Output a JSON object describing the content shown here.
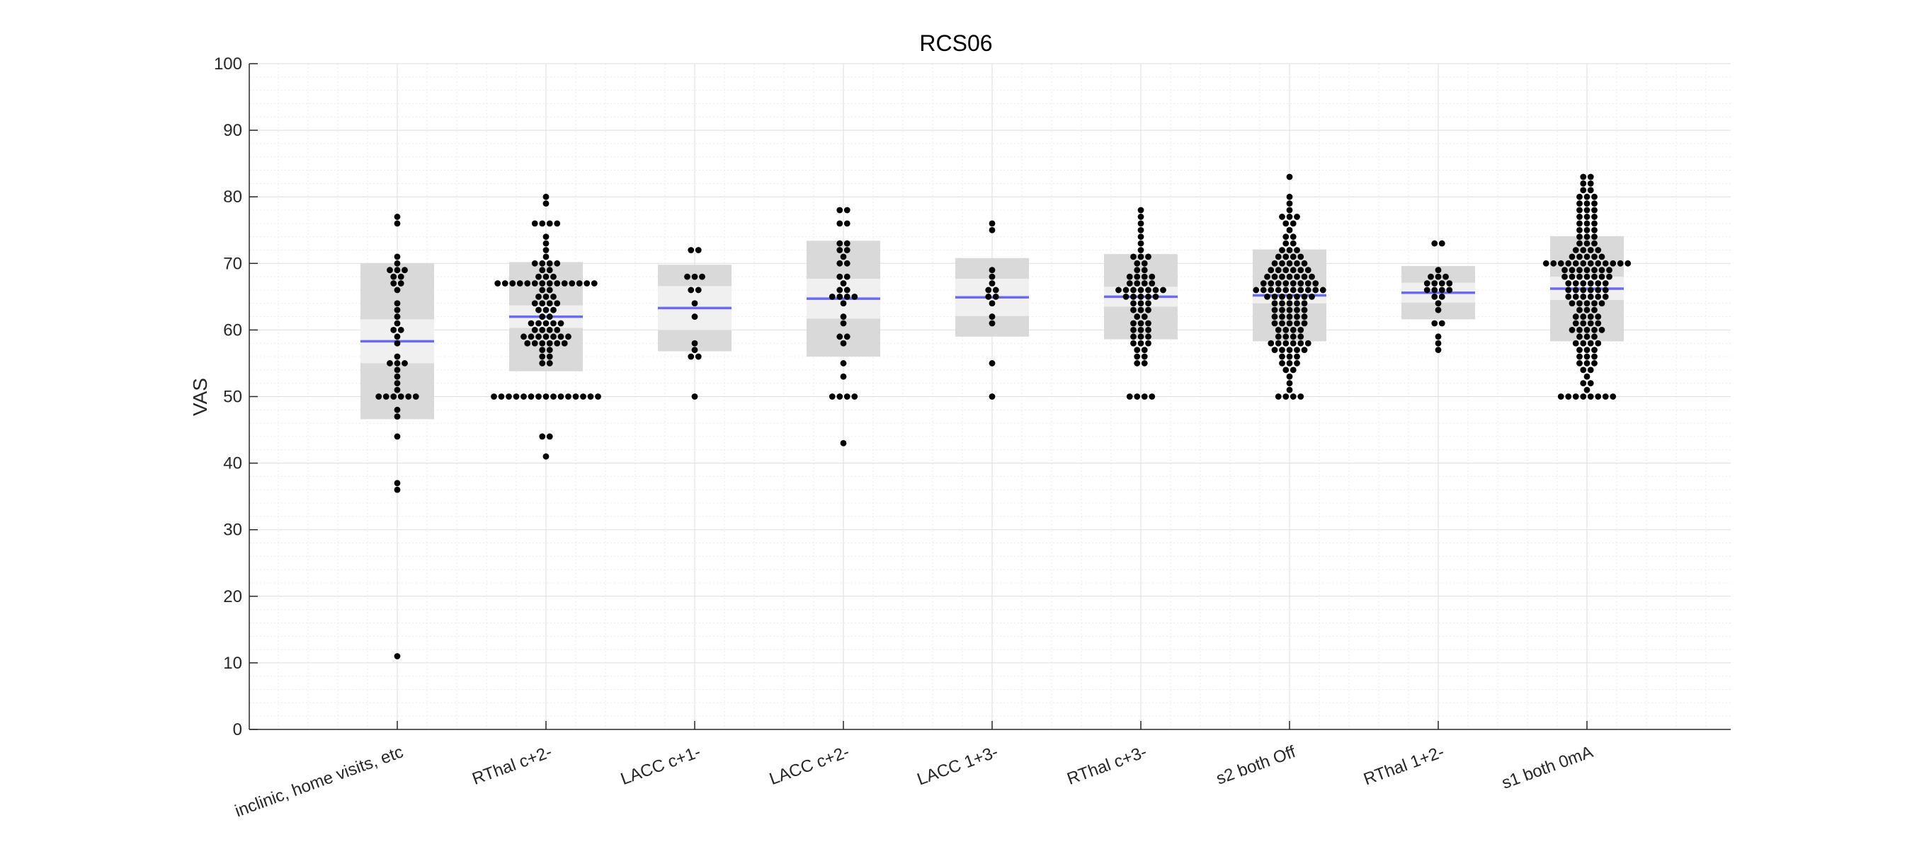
{
  "chart_data": {
    "type": "scatter",
    "title": "RCS06",
    "xlabel": "",
    "ylabel": "VAS",
    "ylim": [
      0,
      100
    ],
    "yticks": [
      0,
      10,
      20,
      30,
      40,
      50,
      60,
      70,
      80,
      90,
      100
    ],
    "grid": true,
    "minor_grid": true,
    "categories": [
      "inclinic, home visits, etc",
      "RThal c+2-",
      "LACC c+1-",
      "LACC c+2-",
      "LACC 1+3-",
      "RThal c+3-",
      "s2 both Off",
      "RThal 1+2-",
      "s1 both 0mA"
    ],
    "colors": {
      "mean_line": "#6b6bf0",
      "sd_box": "#d9d9d9",
      "sem_box": "#f0f0f0",
      "points": "#000000"
    },
    "groups": [
      {
        "category": "inclinic, home visits, etc",
        "mean": 58.3,
        "sem_low": 55.0,
        "sem_high": 61.6,
        "sd_low": 46.6,
        "sd_high": 70.0,
        "points": [
          77,
          76,
          71,
          70,
          69,
          69,
          69,
          68,
          68,
          67,
          67,
          66,
          64,
          63,
          62,
          61,
          60,
          60,
          59,
          58,
          56,
          55,
          55,
          55,
          54,
          53,
          52,
          51,
          50,
          50,
          50,
          50,
          50,
          50,
          48,
          47,
          44,
          37,
          36,
          11
        ]
      },
      {
        "category": "RThal c+2-",
        "mean": 62.0,
        "sem_low": 60.3,
        "sem_high": 63.7,
        "sd_low": 53.8,
        "sd_high": 70.2,
        "points": [
          80,
          79,
          76,
          76,
          76,
          76,
          74,
          73,
          72,
          71,
          70,
          70,
          70,
          70,
          69,
          69,
          68,
          68,
          68,
          67,
          67,
          67,
          67,
          67,
          67,
          67,
          67,
          67,
          67,
          67,
          67,
          67,
          67,
          66,
          66,
          65,
          65,
          65,
          64,
          64,
          64,
          64,
          63,
          63,
          63,
          62,
          62,
          61,
          61,
          61,
          61,
          61,
          60,
          60,
          60,
          60,
          59,
          59,
          59,
          59,
          59,
          59,
          59,
          58,
          58,
          58,
          58,
          58,
          58,
          57,
          57,
          56,
          56,
          55,
          55,
          50,
          50,
          50,
          50,
          50,
          50,
          50,
          50,
          50,
          50,
          50,
          50,
          50,
          50,
          50,
          44,
          44,
          41
        ]
      },
      {
        "category": "LACC c+1-",
        "mean": 63.3,
        "sem_low": 60.0,
        "sem_high": 66.6,
        "sd_low": 56.8,
        "sd_high": 69.8,
        "points": [
          72,
          72,
          68,
          68,
          68,
          66,
          66,
          64,
          62,
          58,
          57,
          56,
          56,
          50
        ]
      },
      {
        "category": "LACC c+2-",
        "mean": 64.7,
        "sem_low": 61.7,
        "sem_high": 67.7,
        "sd_low": 56.0,
        "sd_high": 73.4,
        "points": [
          78,
          78,
          76,
          76,
          73,
          73,
          72,
          72,
          71,
          70,
          70,
          68,
          68,
          67,
          66,
          66,
          65,
          65,
          65,
          65,
          64,
          62,
          61,
          59,
          59,
          58,
          55,
          53,
          50,
          50,
          50,
          50,
          43
        ]
      },
      {
        "category": "LACC 1+3-",
        "mean": 64.9,
        "sem_low": 62.1,
        "sem_high": 67.7,
        "sd_low": 59.0,
        "sd_high": 70.8,
        "points": [
          76,
          75,
          69,
          68,
          67,
          66,
          66,
          65,
          65,
          64,
          62,
          61,
          55,
          50
        ]
      },
      {
        "category": "RThal c+3-",
        "mean": 65.0,
        "sem_low": 63.5,
        "sem_high": 66.5,
        "sd_low": 58.6,
        "sd_high": 71.4,
        "points": [
          78,
          77,
          76,
          75,
          74,
          73,
          72,
          71,
          71,
          71,
          70,
          70,
          69,
          69,
          68,
          68,
          68,
          68,
          67,
          67,
          67,
          67,
          66,
          66,
          66,
          66,
          66,
          66,
          66,
          65,
          65,
          65,
          65,
          65,
          64,
          64,
          64,
          63,
          63,
          63,
          62,
          62,
          61,
          61,
          61,
          60,
          60,
          60,
          59,
          59,
          59,
          58,
          58,
          58,
          57,
          57,
          56,
          56,
          55,
          55,
          50,
          50,
          50,
          50
        ]
      },
      {
        "category": "s2 both Off",
        "mean": 65.2,
        "sem_low": 64.0,
        "sem_high": 66.4,
        "sd_low": 58.3,
        "sd_high": 72.1,
        "points": [
          83,
          80,
          79,
          78,
          77,
          77,
          77,
          76,
          76,
          75,
          74,
          74,
          73,
          73,
          72,
          72,
          72,
          71,
          71,
          71,
          71,
          70,
          70,
          70,
          70,
          70,
          69,
          69,
          69,
          69,
          69,
          69,
          68,
          68,
          68,
          68,
          68,
          68,
          68,
          67,
          67,
          67,
          67,
          67,
          67,
          67,
          67,
          66,
          66,
          66,
          66,
          66,
          66,
          66,
          66,
          66,
          66,
          65,
          65,
          65,
          65,
          65,
          65,
          65,
          64,
          64,
          64,
          64,
          64,
          63,
          63,
          63,
          63,
          63,
          62,
          62,
          62,
          62,
          62,
          61,
          61,
          61,
          61,
          61,
          60,
          60,
          60,
          60,
          59,
          59,
          59,
          59,
          58,
          58,
          58,
          58,
          58,
          58,
          57,
          57,
          57,
          57,
          57,
          56,
          56,
          56,
          55,
          55,
          55,
          54,
          54,
          53,
          52,
          51,
          50,
          50,
          50,
          50
        ]
      },
      {
        "category": "RThal 1+2-",
        "mean": 65.6,
        "sem_low": 64.1,
        "sem_high": 67.1,
        "sd_low": 61.6,
        "sd_high": 69.6,
        "points": [
          73,
          73,
          69,
          68,
          68,
          68,
          67,
          67,
          67,
          67,
          66,
          66,
          66,
          66,
          65,
          65,
          64,
          63,
          61,
          61,
          59,
          58,
          57
        ]
      },
      {
        "category": "s1 both 0mA",
        "mean": 66.2,
        "sem_low": 64.5,
        "sem_high": 68.0,
        "sd_low": 58.3,
        "sd_high": 74.1,
        "points": [
          83,
          83,
          82,
          82,
          81,
          81,
          80,
          80,
          80,
          79,
          79,
          79,
          78,
          78,
          78,
          77,
          77,
          77,
          76,
          76,
          76,
          75,
          75,
          75,
          74,
          74,
          74,
          73,
          73,
          73,
          72,
          72,
          72,
          72,
          71,
          71,
          71,
          71,
          71,
          70,
          70,
          70,
          70,
          70,
          70,
          70,
          70,
          70,
          70,
          70,
          70,
          69,
          69,
          69,
          69,
          69,
          69,
          69,
          68,
          68,
          68,
          68,
          68,
          68,
          68,
          67,
          67,
          67,
          67,
          67,
          67,
          66,
          66,
          66,
          66,
          66,
          66,
          65,
          65,
          65,
          65,
          65,
          65,
          64,
          64,
          64,
          64,
          64,
          63,
          63,
          63,
          62,
          62,
          62,
          62,
          61,
          61,
          61,
          61,
          60,
          60,
          60,
          60,
          60,
          59,
          59,
          59,
          58,
          58,
          58,
          58,
          57,
          57,
          57,
          56,
          56,
          56,
          55,
          55,
          55,
          54,
          54,
          53,
          52,
          52,
          51,
          50,
          50,
          50,
          50,
          50,
          50,
          50,
          50
        ]
      }
    ]
  }
}
